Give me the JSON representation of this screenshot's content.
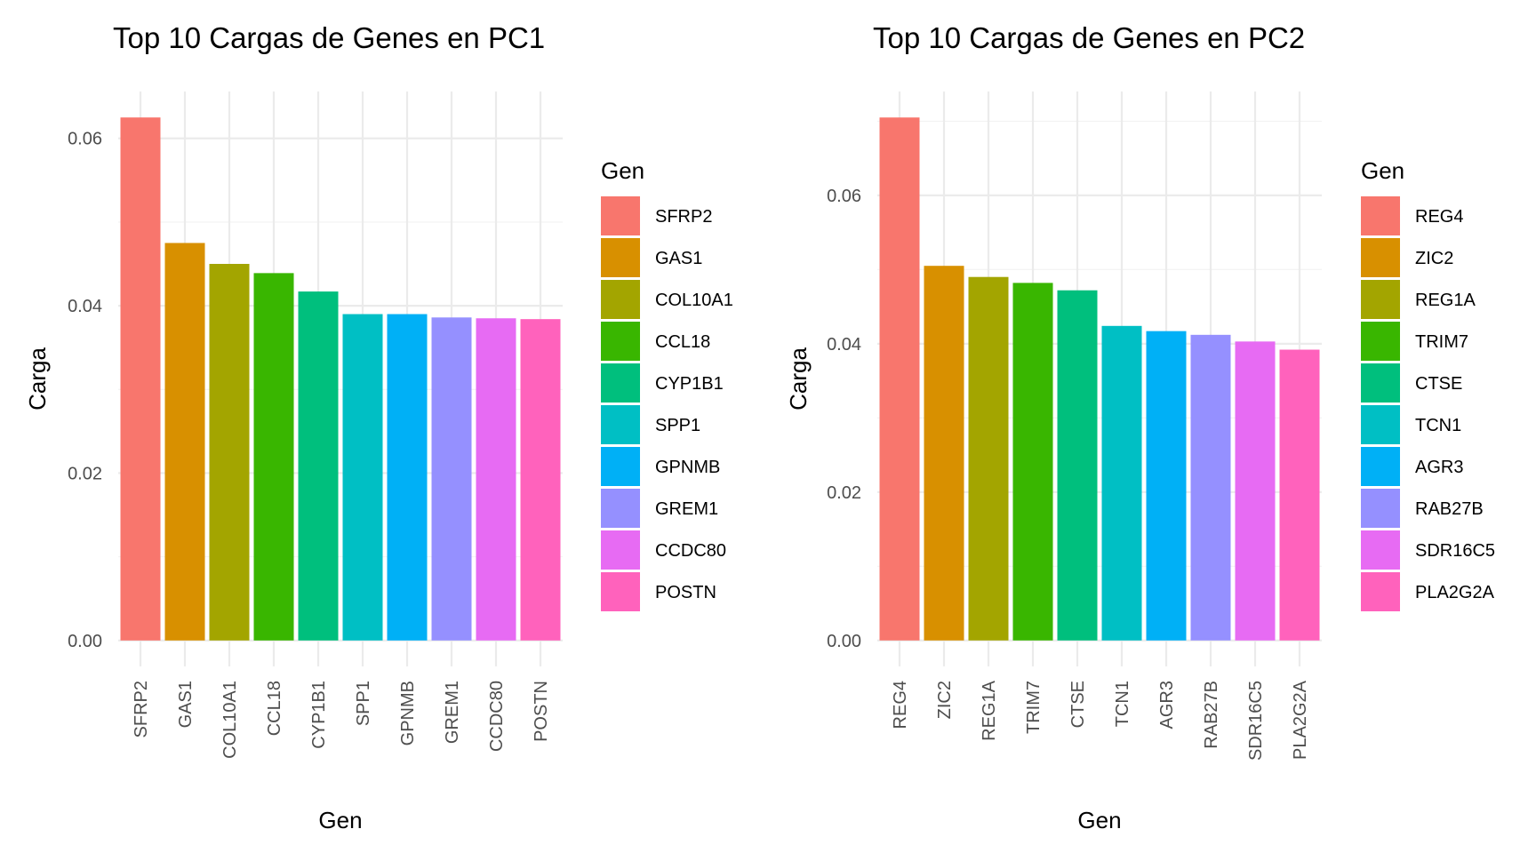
{
  "colors": [
    "#F8766D",
    "#D89000",
    "#A3A500",
    "#39B600",
    "#00BF7D",
    "#00BFC4",
    "#00B0F6",
    "#9590FF",
    "#E76BF3",
    "#FF62BC"
  ],
  "chart_data": [
    {
      "type": "bar",
      "title": "Top 10 Cargas de Genes en PC1",
      "xlabel": "Gen",
      "ylabel": "Carga",
      "legend_title": "Gen",
      "legend_position": "right",
      "grid": true,
      "categories": [
        "SFRP2",
        "GAS1",
        "COL10A1",
        "CCL18",
        "CYP1B1",
        "SPP1",
        "GPNMB",
        "GREM1",
        "CCDC80",
        "POSTN"
      ],
      "values": [
        0.0625,
        0.0475,
        0.045,
        0.0439,
        0.0417,
        0.039,
        0.039,
        0.0386,
        0.0385,
        0.0384
      ],
      "yticks": [
        0.0,
        0.02,
        0.04,
        0.06
      ],
      "ytick_labels": [
        "0.00",
        "0.02",
        "0.04",
        "0.06"
      ],
      "ylim": [
        -0.0031,
        0.0656
      ]
    },
    {
      "type": "bar",
      "title": "Top 10 Cargas de Genes en PC2",
      "xlabel": "Gen",
      "ylabel": "Carga",
      "legend_title": "Gen",
      "legend_position": "right",
      "grid": true,
      "categories": [
        "REG4",
        "ZIC2",
        "REG1A",
        "TRIM7",
        "CTSE",
        "TCN1",
        "AGR3",
        "RAB27B",
        "SDR16C5",
        "PLA2G2A"
      ],
      "values": [
        0.0705,
        0.0505,
        0.049,
        0.0482,
        0.0472,
        0.0424,
        0.0417,
        0.0412,
        0.0403,
        0.0392
      ],
      "yticks": [
        0.0,
        0.02,
        0.04,
        0.06
      ],
      "ytick_labels": [
        "0.00",
        "0.02",
        "0.04",
        "0.06"
      ],
      "ylim": [
        -0.0035,
        0.074
      ]
    }
  ]
}
